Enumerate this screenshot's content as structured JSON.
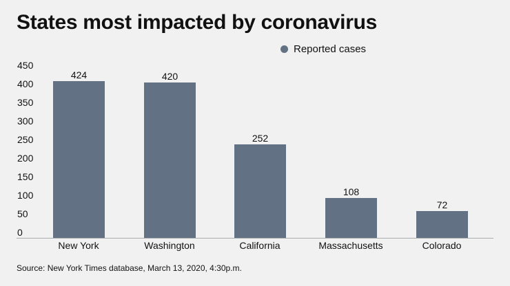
{
  "header": {
    "title": "States most impacted by coronavirus"
  },
  "legend": {
    "items": [
      {
        "label": "Reported cases",
        "color": "#637184"
      }
    ]
  },
  "footer": {
    "source": "Source: New York Times database, March 13, 2020, 4:30p.m."
  },
  "chart_data": {
    "type": "bar",
    "title": "States most impacted by coronavirus",
    "xlabel": "",
    "ylabel": "",
    "categories": [
      "New York",
      "Washington",
      "California",
      "Massachusetts",
      "Colorado"
    ],
    "series": [
      {
        "name": "Reported cases",
        "values": [
          424,
          420,
          252,
          108,
          72
        ],
        "color": "#637184"
      }
    ],
    "data_labels": [
      "424",
      "420",
      "252",
      "108",
      "72"
    ],
    "yticks": [
      "450",
      "400",
      "350",
      "300",
      "250",
      "200",
      "150",
      "100",
      "50",
      "0"
    ],
    "ylim": [
      0,
      450
    ],
    "grid": false,
    "legend_position": "top-right",
    "annotations": [
      "Source: New York Times database, March 13, 2020, 4:30p.m."
    ]
  }
}
